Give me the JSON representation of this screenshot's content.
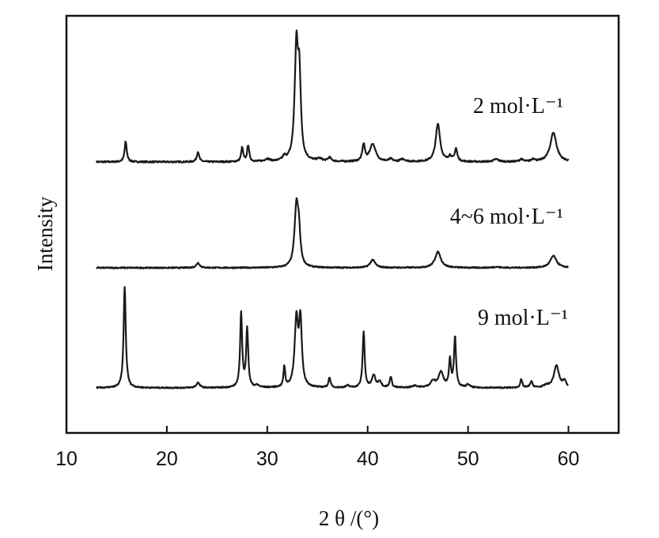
{
  "chart_data": {
    "type": "line",
    "xlabel": "2 θ /(°)",
    "ylabel": "Intensity",
    "xlim": [
      10,
      65
    ],
    "xticks": [
      10,
      20,
      30,
      40,
      50,
      60
    ],
    "yticks": "none",
    "grid": false,
    "series": [
      {
        "name": "2 mol·L⁻¹",
        "x_range": [
          13,
          60
        ],
        "baseline": 0,
        "peaks": [
          {
            "x": 15.9,
            "h": 0.16,
            "w": 0.13
          },
          {
            "x": 23.1,
            "h": 0.08,
            "w": 0.14
          },
          {
            "x": 27.5,
            "h": 0.11,
            "w": 0.12
          },
          {
            "x": 28.1,
            "h": 0.13,
            "w": 0.12
          },
          {
            "x": 30.0,
            "h": 0.02,
            "w": 0.3
          },
          {
            "x": 31.7,
            "h": 0.03,
            "w": 0.2
          },
          {
            "x": 32.9,
            "h": 0.88,
            "w": 0.2
          },
          {
            "x": 33.2,
            "h": 0.6,
            "w": 0.17
          },
          {
            "x": 35.2,
            "h": 0.02,
            "w": 0.3
          },
          {
            "x": 36.2,
            "h": 0.03,
            "w": 0.2
          },
          {
            "x": 39.6,
            "h": 0.13,
            "w": 0.15
          },
          {
            "x": 40.5,
            "h": 0.14,
            "w": 0.35
          },
          {
            "x": 42.3,
            "h": 0.02,
            "w": 0.2
          },
          {
            "x": 43.5,
            "h": 0.02,
            "w": 0.3
          },
          {
            "x": 47.0,
            "h": 0.3,
            "w": 0.26
          },
          {
            "x": 48.2,
            "h": 0.04,
            "w": 0.2
          },
          {
            "x": 48.8,
            "h": 0.1,
            "w": 0.15
          },
          {
            "x": 52.8,
            "h": 0.02,
            "w": 0.3
          },
          {
            "x": 55.3,
            "h": 0.02,
            "w": 0.2
          },
          {
            "x": 56.5,
            "h": 0.02,
            "w": 0.2
          },
          {
            "x": 58.5,
            "h": 0.23,
            "w": 0.38
          }
        ]
      },
      {
        "name": "4~6 mol·L⁻¹",
        "x_range": [
          13,
          60
        ],
        "baseline": 0,
        "peaks": [
          {
            "x": 23.1,
            "h": 0.05,
            "w": 0.2
          },
          {
            "x": 32.9,
            "h": 0.6,
            "w": 0.22
          },
          {
            "x": 33.15,
            "h": 0.3,
            "w": 0.17
          },
          {
            "x": 40.5,
            "h": 0.08,
            "w": 0.3
          },
          {
            "x": 47.0,
            "h": 0.16,
            "w": 0.35
          },
          {
            "x": 52.8,
            "h": 0.01,
            "w": 0.3
          },
          {
            "x": 58.5,
            "h": 0.12,
            "w": 0.38
          }
        ]
      },
      {
        "name": "9 mol·L⁻¹",
        "x_range": [
          13,
          60
        ],
        "baseline": 0,
        "peaks": [
          {
            "x": 15.8,
            "h": 1.0,
            "w": 0.13
          },
          {
            "x": 23.1,
            "h": 0.05,
            "w": 0.2
          },
          {
            "x": 27.4,
            "h": 0.74,
            "w": 0.12
          },
          {
            "x": 28.0,
            "h": 0.58,
            "w": 0.12
          },
          {
            "x": 29.0,
            "h": 0.02,
            "w": 0.2
          },
          {
            "x": 31.7,
            "h": 0.2,
            "w": 0.1
          },
          {
            "x": 32.9,
            "h": 0.66,
            "w": 0.2
          },
          {
            "x": 33.3,
            "h": 0.63,
            "w": 0.17
          },
          {
            "x": 36.2,
            "h": 0.1,
            "w": 0.12
          },
          {
            "x": 38.0,
            "h": 0.02,
            "w": 0.2
          },
          {
            "x": 39.6,
            "h": 0.55,
            "w": 0.12
          },
          {
            "x": 40.6,
            "h": 0.12,
            "w": 0.2
          },
          {
            "x": 41.2,
            "h": 0.06,
            "w": 0.2
          },
          {
            "x": 42.3,
            "h": 0.11,
            "w": 0.12
          },
          {
            "x": 44.7,
            "h": 0.02,
            "w": 0.3
          },
          {
            "x": 46.5,
            "h": 0.06,
            "w": 0.3
          },
          {
            "x": 47.3,
            "h": 0.15,
            "w": 0.3
          },
          {
            "x": 48.2,
            "h": 0.27,
            "w": 0.12
          },
          {
            "x": 48.7,
            "h": 0.5,
            "w": 0.12
          },
          {
            "x": 50.0,
            "h": 0.03,
            "w": 0.2
          },
          {
            "x": 55.3,
            "h": 0.08,
            "w": 0.12
          },
          {
            "x": 56.3,
            "h": 0.06,
            "w": 0.15
          },
          {
            "x": 57.8,
            "h": 0.02,
            "w": 0.3
          },
          {
            "x": 58.8,
            "h": 0.22,
            "w": 0.3
          },
          {
            "x": 59.6,
            "h": 0.06,
            "w": 0.2
          }
        ]
      }
    ]
  }
}
